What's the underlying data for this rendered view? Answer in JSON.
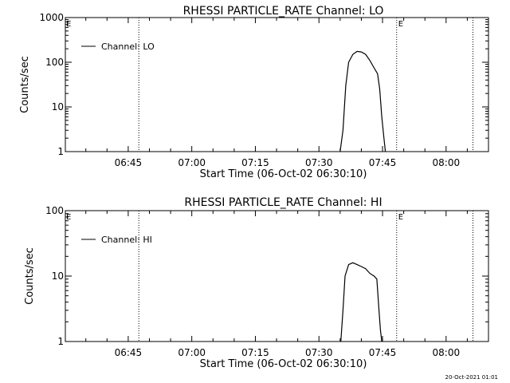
{
  "chart_data": [
    {
      "type": "line",
      "title": "RHESSI PARTICLE_RATE Channel: LO",
      "xlabel": "Start Time (06-Oct-02 06:30:10)",
      "ylabel": "Counts/sec",
      "x_ticks": [
        "06:45",
        "07:00",
        "07:15",
        "07:30",
        "07:45",
        "08:00"
      ],
      "y_ticks": [
        "1",
        "10",
        "100",
        "1000"
      ],
      "y_scale": "log",
      "ylim": [
        1,
        1000
      ],
      "xlim": [
        "06:30:10",
        "08:10:00"
      ],
      "grid": false,
      "legend": {
        "placement": "top-left",
        "entries": [
          "Channel: LO"
        ]
      },
      "flags": [
        "E",
        "E"
      ],
      "event_lines": [
        "06:47:30",
        "07:48:20",
        "08:06:20"
      ],
      "series": [
        {
          "name": "Channel: LO",
          "x": [
            "07:35:00",
            "07:35:40",
            "07:36:20",
            "07:37:00",
            "07:38:00",
            "07:39:00",
            "07:40:00",
            "07:41:00",
            "07:42:00",
            "07:43:00",
            "07:43:50",
            "07:44:20",
            "07:44:50",
            "07:45:20",
            "07:45:40"
          ],
          "values": [
            1,
            3,
            30,
            100,
            150,
            175,
            170,
            150,
            110,
            75,
            55,
            25,
            6,
            2,
            1
          ]
        }
      ]
    },
    {
      "type": "line",
      "title": "RHESSI PARTICLE_RATE Channel: HI",
      "xlabel": "Start Time (06-Oct-02 06:30:10)",
      "ylabel": "Counts/sec",
      "x_ticks": [
        "06:45",
        "07:00",
        "07:15",
        "07:30",
        "07:45",
        "08:00"
      ],
      "y_ticks": [
        "1",
        "10",
        "100"
      ],
      "y_scale": "log",
      "ylim": [
        1,
        100
      ],
      "xlim": [
        "06:30:10",
        "08:10:00"
      ],
      "grid": false,
      "legend": {
        "placement": "top-left",
        "entries": [
          "Channel: HI"
        ]
      },
      "flags": [
        "E",
        "E"
      ],
      "event_lines": [
        "06:47:30",
        "07:48:20",
        "08:06:20"
      ],
      "series": [
        {
          "name": "Channel: HI",
          "x": [
            "07:35:10",
            "07:35:40",
            "07:36:10",
            "07:37:00",
            "07:38:00",
            "07:39:00",
            "07:40:00",
            "07:41:00",
            "07:42:00",
            "07:43:00",
            "07:43:40",
            "07:44:10",
            "07:44:30",
            "07:44:50"
          ],
          "values": [
            1,
            3,
            10,
            15,
            16,
            15,
            14,
            13,
            11,
            10,
            9,
            3,
            1.5,
            1
          ]
        }
      ]
    }
  ],
  "footer": {
    "timestamp": "20-Oct-2021 01:01"
  }
}
